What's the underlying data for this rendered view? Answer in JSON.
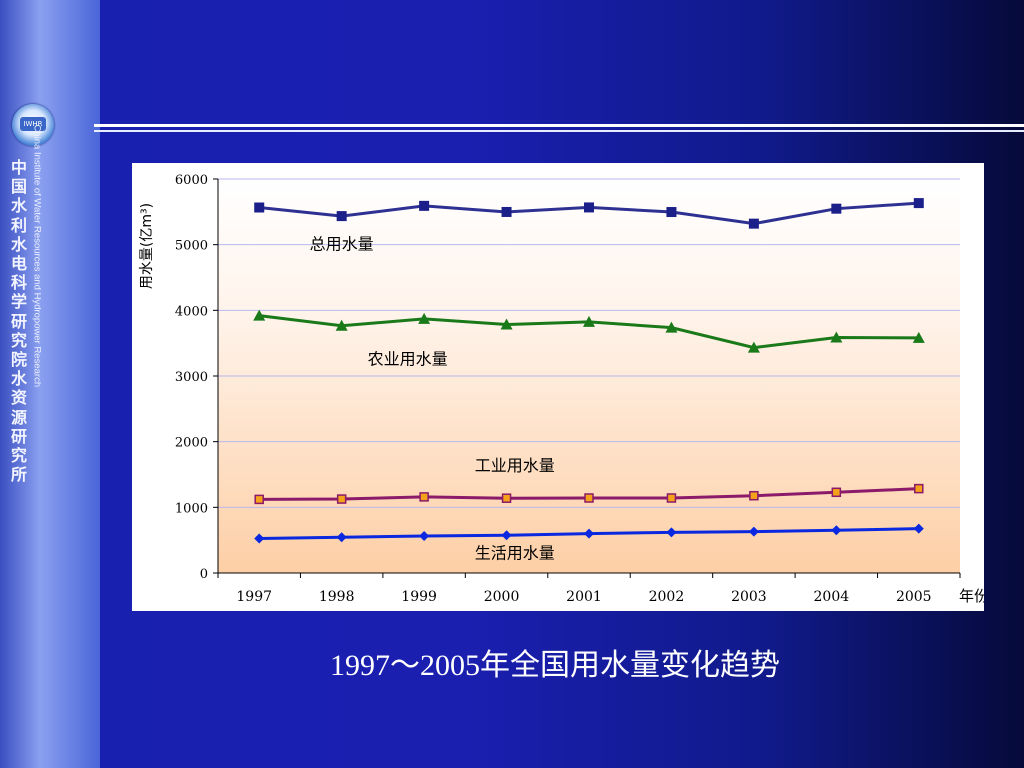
{
  "sidebar": {
    "logo_text": "IWHR",
    "institute_cn": "中国水利水电科学研究院水资源研究所",
    "institute_en": "China Institute of Water Resources and Hydropower Research"
  },
  "caption": "1997～2005年全国用水量变化趋势",
  "colors": {
    "total": "#2e3192",
    "total_marker": "#1a1f8a",
    "agri": "#1a7a1a",
    "industry_line": "#8b1a6a",
    "industry_marker": "#f4a21a",
    "domestic": "#0a28e0"
  },
  "chart_data": {
    "type": "line",
    "title": "",
    "xlabel": "年份",
    "ylabel": "用水量(亿m³)",
    "ylim": [
      0,
      6000
    ],
    "yticks": [
      "0",
      "1000",
      "2000",
      "3000",
      "4000",
      "5000",
      "6000"
    ],
    "categories": [
      "1997",
      "1998",
      "1999",
      "2000",
      "2001",
      "2002",
      "2003",
      "2004",
      "2005"
    ],
    "grid": true,
    "series": [
      {
        "name": "总用水量",
        "marker": "square",
        "values": [
          5566,
          5435,
          5591,
          5498,
          5567,
          5497,
          5320,
          5548,
          5633
        ]
      },
      {
        "name": "农业用水量",
        "marker": "triangle",
        "values": [
          3920,
          3766,
          3869,
          3784,
          3825,
          3736,
          3433,
          3586,
          3580
        ]
      },
      {
        "name": "工业用水量",
        "marker": "square-open",
        "values": [
          1121,
          1126,
          1159,
          1139,
          1142,
          1142,
          1177,
          1229,
          1285
        ]
      },
      {
        "name": "生活用水量",
        "marker": "diamond",
        "values": [
          525,
          545,
          563,
          575,
          600,
          619,
          630,
          651,
          675
        ]
      }
    ]
  }
}
